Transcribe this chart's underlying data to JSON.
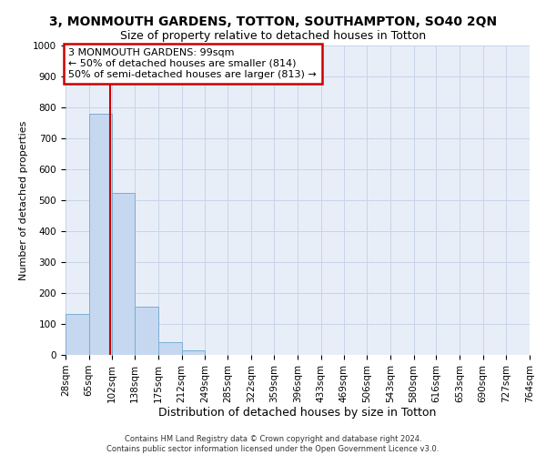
{
  "title": "3, MONMOUTH GARDENS, TOTTON, SOUTHAMPTON, SO40 2QN",
  "subtitle": "Size of property relative to detached houses in Totton",
  "xlabel": "Distribution of detached houses by size in Totton",
  "ylabel": "Number of detached properties",
  "property_size": 99,
  "annotation_line1": "3 MONMOUTH GARDENS: 99sqm",
  "annotation_line2": "← 50% of detached houses are smaller (814)",
  "annotation_line3": "50% of semi-detached houses are larger (813) →",
  "bin_edges": [
    28,
    65,
    102,
    138,
    175,
    212,
    249,
    285,
    322,
    359,
    396,
    433,
    469,
    506,
    543,
    580,
    616,
    653,
    690,
    727,
    764
  ],
  "bar_heights": [
    132,
    778,
    525,
    157,
    40,
    14,
    0,
    0,
    0,
    0,
    0,
    0,
    0,
    0,
    0,
    0,
    0,
    0,
    0,
    0
  ],
  "bar_color": "#c5d8f0",
  "bar_edge_color": "#7badd4",
  "vline_color": "#cc0000",
  "annotation_box_edgecolor": "#cc0000",
  "grid_color": "#c8d4e8",
  "bg_color": "#e8eef8",
  "ylim": [
    0,
    1000
  ],
  "yticks": [
    0,
    100,
    200,
    300,
    400,
    500,
    600,
    700,
    800,
    900,
    1000
  ],
  "footnote": "Contains HM Land Registry data © Crown copyright and database right 2024.\nContains public sector information licensed under the Open Government Licence v3.0.",
  "title_fontsize": 10,
  "subtitle_fontsize": 9,
  "xlabel_fontsize": 9,
  "ylabel_fontsize": 8,
  "tick_fontsize": 7.5,
  "annot_fontsize": 8,
  "footnote_fontsize": 6
}
